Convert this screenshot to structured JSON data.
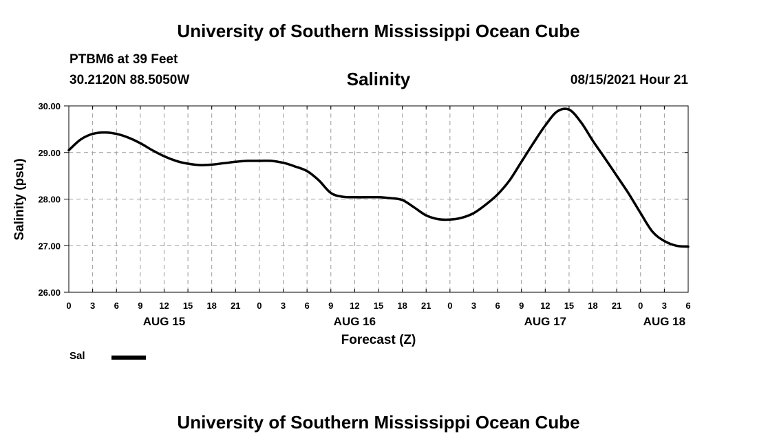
{
  "header": {
    "title": "University of Southern Mississippi Ocean Cube",
    "station": "PTBM6 at 39 Feet",
    "coords": "30.2120N  88.5050W",
    "subtitle": "Salinity",
    "datetime": "08/15/2021 Hour 21"
  },
  "footer": {
    "title": "University of Southern Mississippi Ocean Cube"
  },
  "legend": {
    "label": "Sal"
  },
  "chart_data": {
    "type": "line",
    "title": "Salinity",
    "xlabel": "Forecast (Z)",
    "ylabel": "Salinity (psu)",
    "xlim": [
      0,
      78
    ],
    "ylim": [
      26.0,
      30.0
    ],
    "x_tick_values": [
      0,
      3,
      6,
      9,
      12,
      15,
      18,
      21,
      24,
      27,
      30,
      33,
      36,
      39,
      42,
      45,
      48,
      51,
      54,
      57,
      60,
      63,
      66,
      69,
      72,
      75,
      78
    ],
    "x_tick_labels": [
      "0",
      "3",
      "6",
      "9",
      "12",
      "15",
      "18",
      "21",
      "0",
      "3",
      "6",
      "9",
      "12",
      "15",
      "18",
      "21",
      "0",
      "3",
      "6",
      "9",
      "12",
      "15",
      "18",
      "21",
      "0",
      "3",
      "6"
    ],
    "y_tick_values": [
      26,
      27,
      28,
      29,
      30
    ],
    "y_tick_labels": [
      "26.00",
      "27.00",
      "28.00",
      "29.00",
      "30.00"
    ],
    "date_labels": [
      {
        "label": "AUG 15",
        "x": 12
      },
      {
        "label": "AUG 16",
        "x": 36
      },
      {
        "label": "AUG 17",
        "x": 60
      },
      {
        "label": "AUG 18",
        "x": 75
      }
    ],
    "grid": true,
    "series": [
      {
        "name": "Sal",
        "x": [
          0,
          1.5,
          3,
          4.5,
          6,
          7.5,
          9,
          10.5,
          12,
          13.5,
          15,
          16.5,
          18,
          19.5,
          21,
          22.5,
          24,
          25.5,
          27,
          28.5,
          30,
          31.5,
          33,
          34.5,
          36,
          37.5,
          39,
          40.5,
          42,
          43.5,
          45,
          46.5,
          48,
          49.5,
          51,
          52.5,
          54,
          55.5,
          57,
          58.5,
          60,
          61.5,
          63,
          64.5,
          66,
          67.5,
          69,
          70.5,
          72,
          73.5,
          75,
          76.5,
          78
        ],
        "values": [
          29.05,
          29.28,
          29.4,
          29.43,
          29.4,
          29.32,
          29.2,
          29.05,
          28.92,
          28.82,
          28.76,
          28.73,
          28.74,
          28.77,
          28.8,
          28.82,
          28.82,
          28.82,
          28.78,
          28.7,
          28.6,
          28.4,
          28.13,
          28.05,
          28.04,
          28.04,
          28.04,
          28.02,
          27.98,
          27.82,
          27.65,
          27.57,
          27.56,
          27.6,
          27.7,
          27.88,
          28.1,
          28.4,
          28.8,
          29.2,
          29.58,
          29.88,
          29.92,
          29.65,
          29.25,
          28.88,
          28.5,
          28.12,
          27.7,
          27.3,
          27.1,
          27.0,
          26.98
        ]
      }
    ]
  }
}
